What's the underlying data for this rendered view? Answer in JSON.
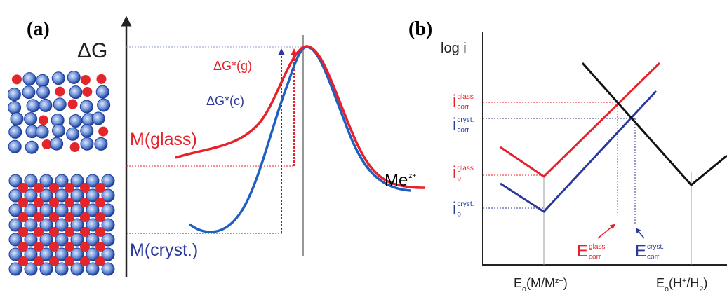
{
  "panel_a": {
    "label": "(a)",
    "axis_label": "ΔG",
    "barrier_glass": "ΔG*(g)",
    "barrier_cryst": "ΔG*(c)",
    "state_glass": "M(glass)",
    "state_cryst": "M(cryst.)",
    "ion": {
      "base": "Me",
      "sup": "z+"
    }
  },
  "panel_b": {
    "label": "(b)",
    "axis_label": "log i",
    "i_corr_glass": {
      "base": "i",
      "sub": "corr",
      "sup": "glass"
    },
    "i_corr_cryst": {
      "base": "i",
      "sub": "corr",
      "sup": "cryst."
    },
    "i_o_glass": {
      "base": "i",
      "sub": "o",
      "sup": "glass"
    },
    "i_o_cryst": {
      "base": "i",
      "sub": "o",
      "sup": "cryst."
    },
    "e_corr_glass": {
      "base": "E",
      "sub": "corr",
      "sup": "glass"
    },
    "e_corr_cryst": {
      "base": "E",
      "sub": "corr",
      "sup": "cryst."
    },
    "e_o_metal": {
      "parts": [
        {
          "text": "E"
        },
        {
          "sub": "o"
        },
        {
          "text": "(M/M"
        },
        {
          "sup": "z+"
        },
        {
          "text": ")"
        }
      ]
    },
    "e_o_hydrogen": {
      "parts": [
        {
          "text": "E"
        },
        {
          "sub": "o"
        },
        {
          "text": "(H"
        },
        {
          "sup": "+"
        },
        {
          "text": "/H"
        },
        {
          "sub": "2"
        },
        {
          "text": ")"
        }
      ]
    }
  }
}
